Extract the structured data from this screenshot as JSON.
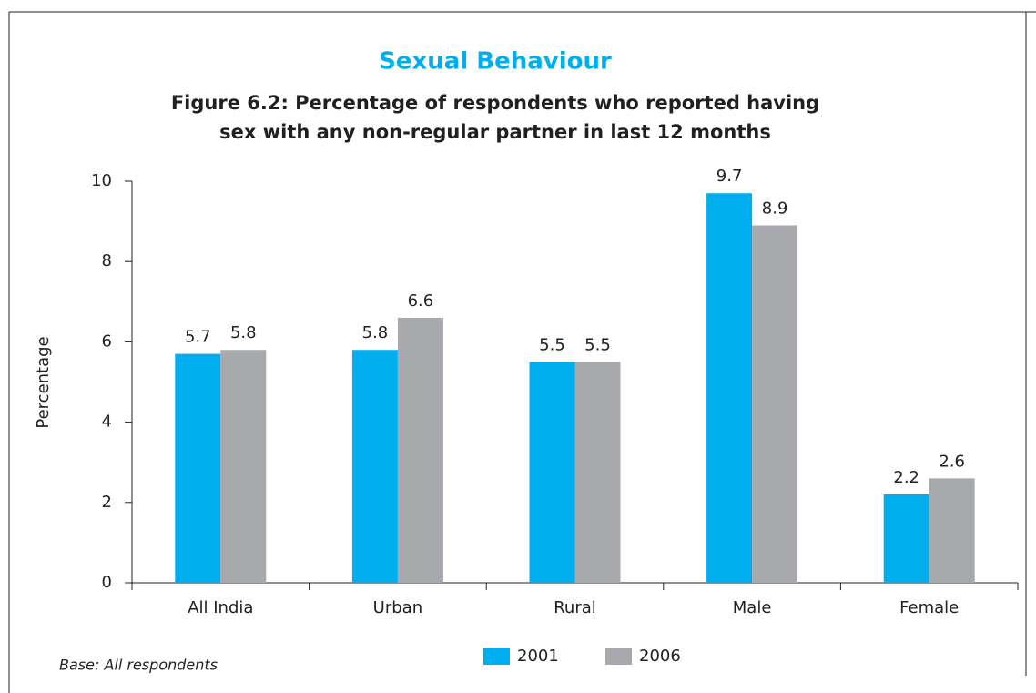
{
  "chart_data": {
    "type": "bar",
    "title": "Sexual Behaviour",
    "subtitle": [
      "Figure 6.2: Percentage of respondents who reported having",
      "sex with any non-regular partner in last 12 months"
    ],
    "y_label": "Percentage",
    "categories": [
      "All India",
      "Urban",
      "Rural",
      "Male",
      "Female"
    ],
    "series": [
      {
        "name": "2001",
        "color": "#00aeef",
        "values": [
          5.7,
          5.8,
          5.5,
          9.7,
          2.2
        ]
      },
      {
        "name": "2006",
        "color": "#a7a9ac",
        "values": [
          5.8,
          6.6,
          5.5,
          8.9,
          2.6
        ]
      }
    ],
    "ylim": [
      0,
      10
    ],
    "yticks": [
      0,
      2,
      4,
      6,
      8,
      10
    ],
    "grid": false,
    "note": "Base: All respondents"
  }
}
